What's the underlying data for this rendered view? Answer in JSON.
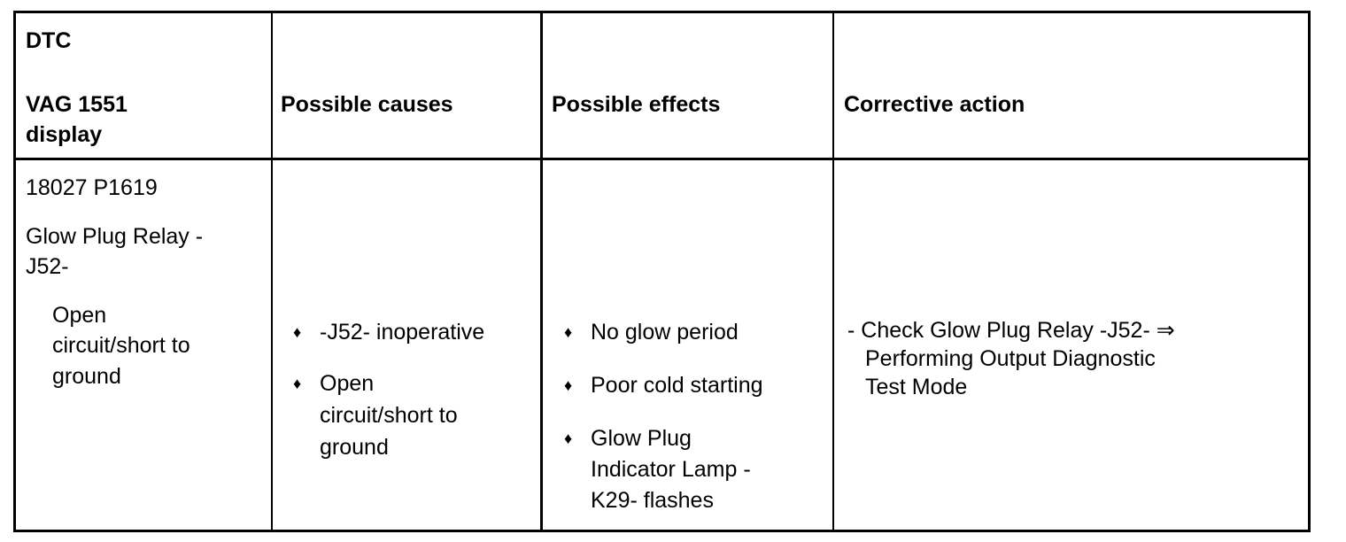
{
  "header": {
    "dtc_label": "DTC",
    "display_label_1": "VAG 1551",
    "display_label_2": "display",
    "causes": "Possible causes",
    "effects": "Possible effects",
    "action": "Corrective action"
  },
  "row": {
    "code": "18027 P1619",
    "component_1": "Glow Plug Relay -",
    "component_2": "J52-",
    "fault": [
      "Open",
      "circuit/short to",
      "ground"
    ],
    "causes": [
      {
        "lines": [
          "-J52- inoperative"
        ]
      },
      {
        "lines": [
          "Open",
          "circuit/short to",
          "ground"
        ]
      }
    ],
    "effects": [
      {
        "lines": [
          "No glow period"
        ]
      },
      {
        "lines": [
          "Poor cold starting"
        ]
      },
      {
        "lines": [
          "Glow Plug",
          "Indicator Lamp -",
          "K29- flashes"
        ]
      }
    ],
    "action": [
      "- Check Glow Plug Relay -J52- ⇒",
      "Performing Output Diagnostic",
      "Test Mode"
    ]
  },
  "bullet_icon": "diamond-bullet"
}
